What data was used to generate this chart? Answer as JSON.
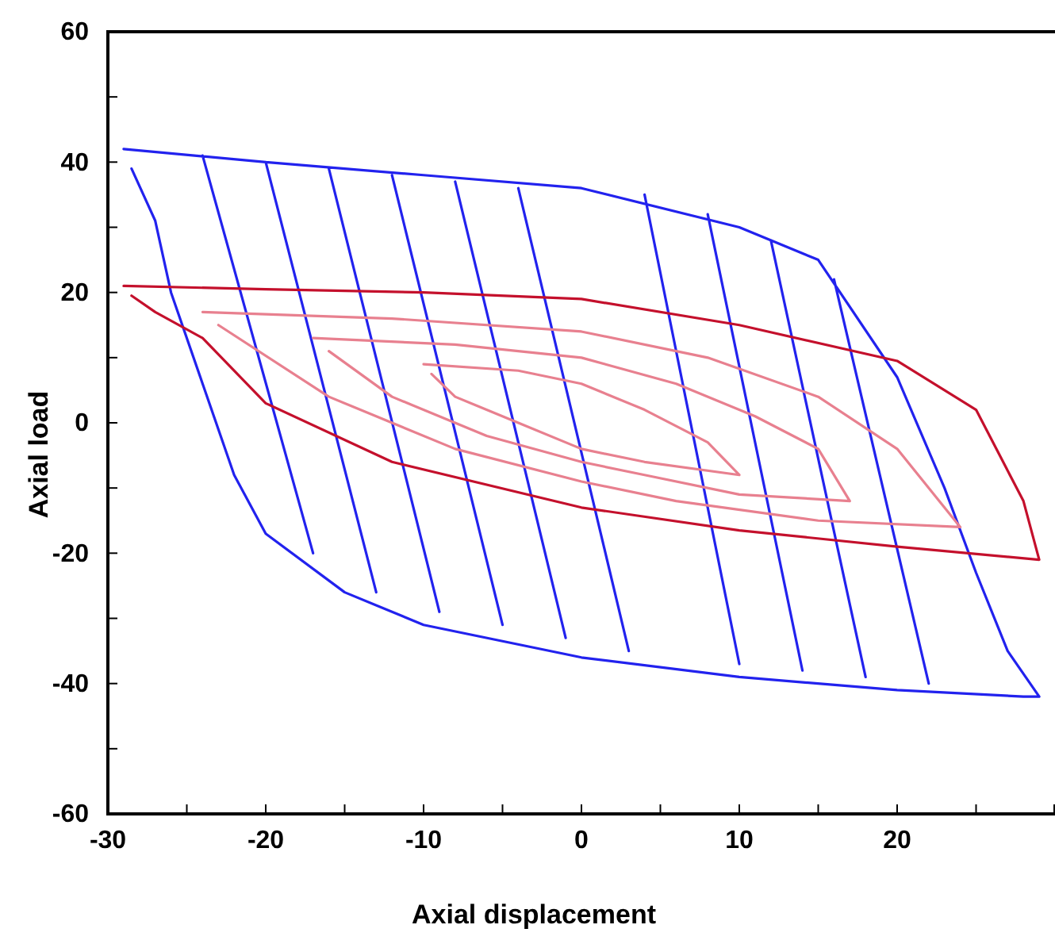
{
  "chart_data": {
    "type": "line",
    "xlabel": "Axial displacement",
    "ylabel": "Axial load",
    "xlim": [
      -30,
      30
    ],
    "ylim": [
      -60,
      60
    ],
    "xticks": [
      -30,
      {
        "value": -25,
        "label": null
      },
      -20,
      {
        "value": -15,
        "label": null
      },
      -10,
      {
        "value": -5,
        "label": null
      },
      0,
      {
        "value": 5,
        "label": null
      },
      10,
      {
        "value": 15,
        "label": null
      },
      20,
      {
        "value": 25,
        "label": null
      }
    ],
    "yticks": [
      -60,
      {
        "value": -50,
        "label": null
      },
      -40,
      {
        "value": -30,
        "label": null
      },
      -20,
      {
        "value": -10,
        "label": null
      },
      0,
      {
        "value": 10,
        "label": null
      },
      20,
      {
        "value": 30,
        "label": null
      },
      40,
      {
        "value": 50,
        "label": null
      },
      60
    ],
    "grid": false,
    "marker": "none",
    "line_style": "solid",
    "series": [
      {
        "color": "#2222ee",
        "x": [
          -29,
          -20,
          -10,
          0,
          10,
          15,
          20,
          23,
          25,
          27,
          29,
          28,
          20,
          10,
          0,
          -10,
          -15,
          -20,
          -22,
          -24,
          -26,
          -27,
          -28.5,
          null,
          -24,
          -17,
          null,
          -20,
          -13,
          null,
          -16,
          -9,
          null,
          -12,
          -5,
          null,
          -8,
          -1,
          null,
          -4,
          3,
          null,
          4,
          10,
          null,
          8,
          14,
          null,
          12,
          18,
          null,
          16,
          22
        ],
        "values": [
          42,
          40,
          38,
          36,
          30,
          25,
          7,
          -10,
          -23,
          -35,
          -42,
          -42,
          -41,
          -39,
          -36,
          -31,
          -26,
          -17,
          -8,
          6,
          20,
          31,
          39,
          null,
          41,
          -20,
          null,
          40,
          -26,
          null,
          39,
          -29,
          null,
          38,
          -31,
          null,
          37,
          -33,
          null,
          36,
          -35,
          null,
          35,
          -37,
          null,
          32,
          -38,
          null,
          28,
          -39,
          null,
          22,
          -40
        ]
      },
      {
        "color": "#c4102c",
        "x": [
          -29,
          -20,
          -10,
          0,
          10,
          20,
          25,
          28,
          29,
          20,
          10,
          0,
          -12,
          -20,
          -24,
          -27,
          -28.5
        ],
        "values": [
          21,
          20.5,
          20,
          19,
          15,
          9.5,
          2,
          -12,
          -21,
          -19,
          -16.5,
          -13,
          -6,
          3,
          13,
          17,
          19.5
        ]
      },
      {
        "color": "#e8808f",
        "x": [
          -24,
          -12,
          0,
          8,
          15,
          20,
          24,
          15,
          6,
          0,
          -8,
          -16,
          -23,
          null,
          -17,
          -8,
          0,
          6,
          11,
          15,
          17,
          10,
          4,
          0,
          -6,
          -12,
          -16,
          null,
          -10,
          -4,
          0,
          4,
          8,
          10,
          4,
          0,
          -4,
          -8,
          -9.5
        ],
        "values": [
          17,
          16,
          14,
          10,
          4,
          -4,
          -16,
          -15,
          -12,
          -9,
          -4,
          4,
          15,
          null,
          13,
          12,
          10,
          6,
          1,
          -4,
          -12,
          -11,
          -8,
          -6,
          -2,
          4,
          11,
          null,
          9,
          8,
          6,
          2,
          -3,
          -8,
          -6,
          -4,
          0,
          4,
          7.5
        ]
      }
    ]
  }
}
